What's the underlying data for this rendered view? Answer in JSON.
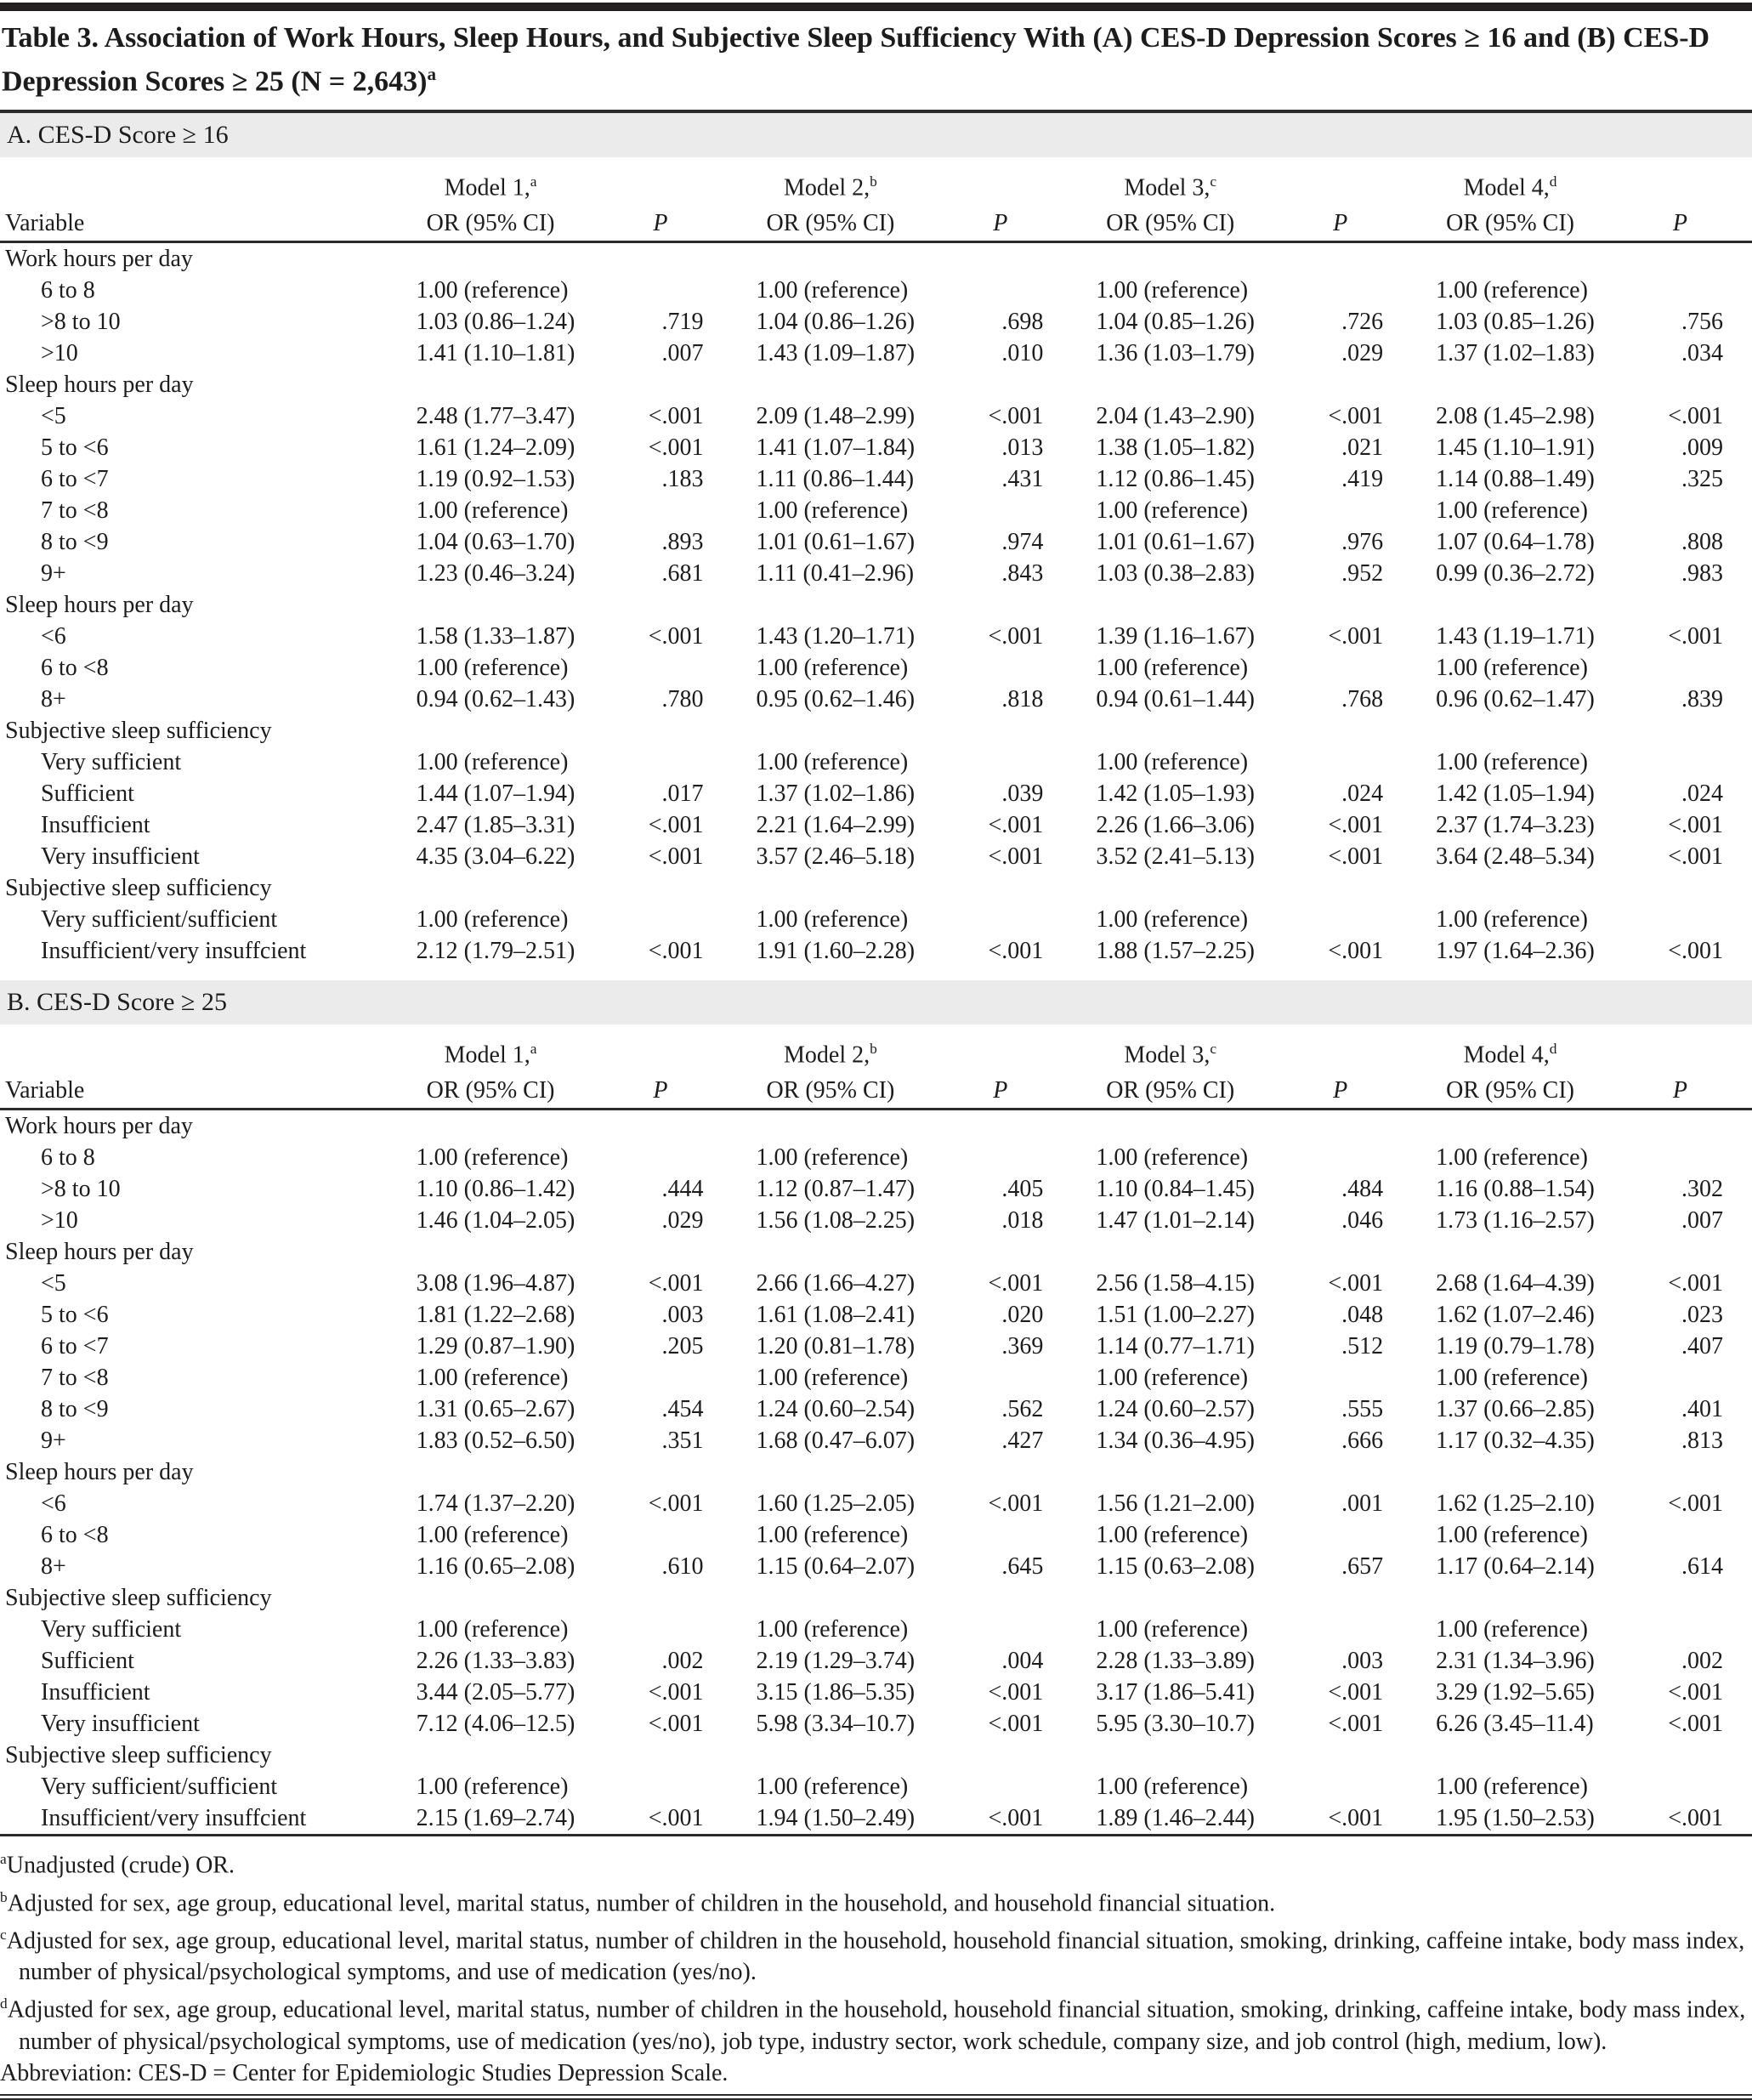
{
  "title": {
    "text": "Table 3. Association of Work Hours, Sleep Hours, and Subjective Sleep Sufficiency With (A) CES-D Depression Scores ≥ 16 and (B) CES-D Depression Scores ≥ 25 (N = 2,643)",
    "sup": "a"
  },
  "columns": {
    "variable_label": "Variable",
    "or_label": "OR (95% CI)",
    "p_label": "P",
    "models": [
      {
        "name": "Model 1,",
        "sup": "a"
      },
      {
        "name": "Model 2,",
        "sup": "b"
      },
      {
        "name": "Model 3,",
        "sup": "c"
      },
      {
        "name": "Model 4,",
        "sup": "d"
      }
    ]
  },
  "panels": [
    {
      "section_label": "A. CES-D Score ≥ 16",
      "rows": [
        {
          "type": "group",
          "label": "Work hours per day"
        },
        {
          "type": "data",
          "label": "6 to 8",
          "cells": [
            "1.00 (reference)",
            "",
            "1.00 (reference)",
            "",
            "1.00 (reference)",
            "",
            "1.00 (reference)",
            ""
          ]
        },
        {
          "type": "data",
          "label": ">8 to 10",
          "cells": [
            "1.03 (0.86–1.24)",
            ".719",
            "1.04 (0.86–1.26)",
            ".698",
            "1.04 (0.85–1.26)",
            ".726",
            "1.03 (0.85–1.26)",
            ".756"
          ]
        },
        {
          "type": "data",
          "label": ">10",
          "cells": [
            "1.41 (1.10–1.81)",
            ".007",
            "1.43 (1.09–1.87)",
            ".010",
            "1.36 (1.03–1.79)",
            ".029",
            "1.37 (1.02–1.83)",
            ".034"
          ]
        },
        {
          "type": "group",
          "label": "Sleep hours per day"
        },
        {
          "type": "data",
          "label": "<5",
          "cells": [
            "2.48 (1.77–3.47)",
            "<.001",
            "2.09 (1.48–2.99)",
            "<.001",
            "2.04 (1.43–2.90)",
            "<.001",
            "2.08 (1.45–2.98)",
            "<.001"
          ]
        },
        {
          "type": "data",
          "label": "5 to <6",
          "cells": [
            "1.61 (1.24–2.09)",
            "<.001",
            "1.41 (1.07–1.84)",
            ".013",
            "1.38 (1.05–1.82)",
            ".021",
            "1.45 (1.10–1.91)",
            ".009"
          ]
        },
        {
          "type": "data",
          "label": "6 to <7",
          "cells": [
            "1.19 (0.92–1.53)",
            ".183",
            "1.11 (0.86–1.44)",
            ".431",
            "1.12 (0.86–1.45)",
            ".419",
            "1.14 (0.88–1.49)",
            ".325"
          ]
        },
        {
          "type": "data",
          "label": "7 to <8",
          "cells": [
            "1.00 (reference)",
            "",
            "1.00 (reference)",
            "",
            "1.00 (reference)",
            "",
            "1.00 (reference)",
            ""
          ]
        },
        {
          "type": "data",
          "label": "8 to <9",
          "cells": [
            "1.04 (0.63–1.70)",
            ".893",
            "1.01 (0.61–1.67)",
            ".974",
            "1.01 (0.61–1.67)",
            ".976",
            "1.07 (0.64–1.78)",
            ".808"
          ]
        },
        {
          "type": "data",
          "label": "9+",
          "cells": [
            "1.23 (0.46–3.24)",
            ".681",
            "1.11 (0.41–2.96)",
            ".843",
            "1.03 (0.38–2.83)",
            ".952",
            "0.99 (0.36–2.72)",
            ".983"
          ]
        },
        {
          "type": "group",
          "label": "Sleep hours per day"
        },
        {
          "type": "data",
          "label": "<6",
          "cells": [
            "1.58 (1.33–1.87)",
            "<.001",
            "1.43 (1.20–1.71)",
            "<.001",
            "1.39 (1.16–1.67)",
            "<.001",
            "1.43 (1.19–1.71)",
            "<.001"
          ]
        },
        {
          "type": "data",
          "label": "6 to <8",
          "cells": [
            "1.00 (reference)",
            "",
            "1.00 (reference)",
            "",
            "1.00 (reference)",
            "",
            "1.00 (reference)",
            ""
          ]
        },
        {
          "type": "data",
          "label": "8+",
          "cells": [
            "0.94 (0.62–1.43)",
            ".780",
            "0.95 (0.62–1.46)",
            ".818",
            "0.94 (0.61–1.44)",
            ".768",
            "0.96 (0.62–1.47)",
            ".839"
          ]
        },
        {
          "type": "group",
          "label": "Subjective sleep sufficiency"
        },
        {
          "type": "data",
          "label": "Very sufficient",
          "cells": [
            "1.00 (reference)",
            "",
            "1.00 (reference)",
            "",
            "1.00 (reference)",
            "",
            "1.00 (reference)",
            ""
          ]
        },
        {
          "type": "data",
          "label": "Sufficient",
          "cells": [
            "1.44 (1.07–1.94)",
            ".017",
            "1.37 (1.02–1.86)",
            ".039",
            "1.42 (1.05–1.93)",
            ".024",
            "1.42 (1.05–1.94)",
            ".024"
          ]
        },
        {
          "type": "data",
          "label": "Insufficient",
          "cells": [
            "2.47 (1.85–3.31)",
            "<.001",
            "2.21 (1.64–2.99)",
            "<.001",
            "2.26 (1.66–3.06)",
            "<.001",
            "2.37 (1.74–3.23)",
            "<.001"
          ]
        },
        {
          "type": "data",
          "label": "Very insufficient",
          "cells": [
            "4.35 (3.04–6.22)",
            "<.001",
            "3.57 (2.46–5.18)",
            "<.001",
            "3.52 (2.41–5.13)",
            "<.001",
            "3.64 (2.48–5.34)",
            "<.001"
          ]
        },
        {
          "type": "group",
          "label": "Subjective sleep sufficiency"
        },
        {
          "type": "data",
          "label": "Very sufficient/sufficient",
          "cells": [
            "1.00 (reference)",
            "",
            "1.00 (reference)",
            "",
            "1.00 (reference)",
            "",
            "1.00 (reference)",
            ""
          ]
        },
        {
          "type": "data",
          "label": "Insufficient/very insuffcient",
          "cells": [
            "2.12 (1.79–2.51)",
            "<.001",
            "1.91 (1.60–2.28)",
            "<.001",
            "1.88 (1.57–2.25)",
            "<.001",
            "1.97 (1.64–2.36)",
            "<.001"
          ]
        }
      ]
    },
    {
      "section_label": "B. CES-D Score ≥ 25",
      "rows": [
        {
          "type": "group",
          "label": "Work hours per day"
        },
        {
          "type": "data",
          "label": "6 to 8",
          "cells": [
            "1.00 (reference)",
            "",
            "1.00 (reference)",
            "",
            "1.00 (reference)",
            "",
            "1.00 (reference)",
            ""
          ]
        },
        {
          "type": "data",
          "label": ">8 to 10",
          "cells": [
            "1.10 (0.86–1.42)",
            ".444",
            "1.12 (0.87–1.47)",
            ".405",
            "1.10 (0.84–1.45)",
            ".484",
            "1.16 (0.88–1.54)",
            ".302"
          ]
        },
        {
          "type": "data",
          "label": ">10",
          "cells": [
            "1.46 (1.04–2.05)",
            ".029",
            "1.56 (1.08–2.25)",
            ".018",
            "1.47 (1.01–2.14)",
            ".046",
            "1.73 (1.16–2.57)",
            ".007"
          ]
        },
        {
          "type": "group",
          "label": "Sleep hours per day"
        },
        {
          "type": "data",
          "label": "<5",
          "cells": [
            "3.08 (1.96–4.87)",
            "<.001",
            "2.66 (1.66–4.27)",
            "<.001",
            "2.56 (1.58–4.15)",
            "<.001",
            "2.68 (1.64–4.39)",
            "<.001"
          ]
        },
        {
          "type": "data",
          "label": "5 to <6",
          "cells": [
            "1.81 (1.22–2.68)",
            ".003",
            "1.61 (1.08–2.41)",
            ".020",
            "1.51 (1.00–2.27)",
            ".048",
            "1.62 (1.07–2.46)",
            ".023"
          ]
        },
        {
          "type": "data",
          "label": "6 to <7",
          "cells": [
            "1.29 (0.87–1.90)",
            ".205",
            "1.20 (0.81–1.78)",
            ".369",
            "1.14 (0.77–1.71)",
            ".512",
            "1.19 (0.79–1.78)",
            ".407"
          ]
        },
        {
          "type": "data",
          "label": "7 to <8",
          "cells": [
            "1.00 (reference)",
            "",
            "1.00 (reference)",
            "",
            "1.00 (reference)",
            "",
            "1.00 (reference)",
            ""
          ]
        },
        {
          "type": "data",
          "label": "8 to <9",
          "cells": [
            "1.31 (0.65–2.67)",
            ".454",
            "1.24 (0.60–2.54)",
            ".562",
            "1.24 (0.60–2.57)",
            ".555",
            "1.37 (0.66–2.85)",
            ".401"
          ]
        },
        {
          "type": "data",
          "label": "9+",
          "cells": [
            "1.83 (0.52–6.50)",
            ".351",
            "1.68 (0.47–6.07)",
            ".427",
            "1.34 (0.36–4.95)",
            ".666",
            "1.17 (0.32–4.35)",
            ".813"
          ]
        },
        {
          "type": "group",
          "label": "Sleep hours per day"
        },
        {
          "type": "data",
          "label": "<6",
          "cells": [
            "1.74 (1.37–2.20)",
            "<.001",
            "1.60 (1.25–2.05)",
            "<.001",
            "1.56 (1.21–2.00)",
            ".001",
            "1.62 (1.25–2.10)",
            "<.001"
          ]
        },
        {
          "type": "data",
          "label": "6 to <8",
          "cells": [
            "1.00 (reference)",
            "",
            "1.00 (reference)",
            "",
            "1.00 (reference)",
            "",
            "1.00 (reference)",
            ""
          ]
        },
        {
          "type": "data",
          "label": "8+",
          "cells": [
            "1.16 (0.65–2.08)",
            ".610",
            "1.15 (0.64–2.07)",
            ".645",
            "1.15 (0.63–2.08)",
            ".657",
            "1.17 (0.64–2.14)",
            ".614"
          ]
        },
        {
          "type": "group",
          "label": "Subjective sleep sufficiency"
        },
        {
          "type": "data",
          "label": "Very sufficient",
          "cells": [
            "1.00 (reference)",
            "",
            "1.00 (reference)",
            "",
            "1.00 (reference)",
            "",
            "1.00 (reference)",
            ""
          ]
        },
        {
          "type": "data",
          "label": "Sufficient",
          "cells": [
            "2.26 (1.33–3.83)",
            ".002",
            "2.19 (1.29–3.74)",
            ".004",
            "2.28 (1.33–3.89)",
            ".003",
            "2.31 (1.34–3.96)",
            ".002"
          ]
        },
        {
          "type": "data",
          "label": "Insufficient",
          "cells": [
            "3.44 (2.05–5.77)",
            "<.001",
            "3.15 (1.86–5.35)",
            "<.001",
            "3.17 (1.86–5.41)",
            "<.001",
            "3.29 (1.92–5.65)",
            "<.001"
          ]
        },
        {
          "type": "data",
          "label": "Very insufficient",
          "cells": [
            "7.12 (4.06–12.5)",
            "<.001",
            "5.98 (3.34–10.7)",
            "<.001",
            "5.95 (3.30–10.7)",
            "<.001",
            "6.26 (3.45–11.4)",
            "<.001"
          ]
        },
        {
          "type": "group",
          "label": "Subjective sleep sufficiency"
        },
        {
          "type": "data",
          "label": "Very sufficient/sufficient",
          "cells": [
            "1.00 (reference)",
            "",
            "1.00 (reference)",
            "",
            "1.00 (reference)",
            "",
            "1.00 (reference)",
            ""
          ]
        },
        {
          "type": "data",
          "label": "Insufficient/very insuffcient",
          "cells": [
            "2.15 (1.69–2.74)",
            "<.001",
            "1.94 (1.50–2.49)",
            "<.001",
            "1.89 (1.46–2.44)",
            "<.001",
            "1.95 (1.50–2.53)",
            "<.001"
          ]
        }
      ]
    }
  ],
  "footnotes": [
    {
      "sup": "a",
      "text": "Unadjusted (crude) OR."
    },
    {
      "sup": "b",
      "text": "Adjusted for sex, age group, educational level, marital status, number of children in the household, and household financial situation."
    },
    {
      "sup": "c",
      "text": "Adjusted for sex, age group, educational level, marital status, number of children in the household, household financial situation, smoking, drinking, caffeine intake, body mass index, number of physical/psychological symptoms, and use of medication (yes/no)."
    },
    {
      "sup": "d",
      "text": "Adjusted for sex, age group, educational level, marital status, number of children in the household, household financial situation, smoking, drinking, caffeine intake, body mass index, number of physical/psychological symptoms, use of medication (yes/no), job type, industry sector, work schedule, company size, and job control (high, medium, low)."
    },
    {
      "sup": "",
      "text": "Abbreviation: CES-D = Center for Epidemiologic Studies Depression Scale."
    }
  ]
}
